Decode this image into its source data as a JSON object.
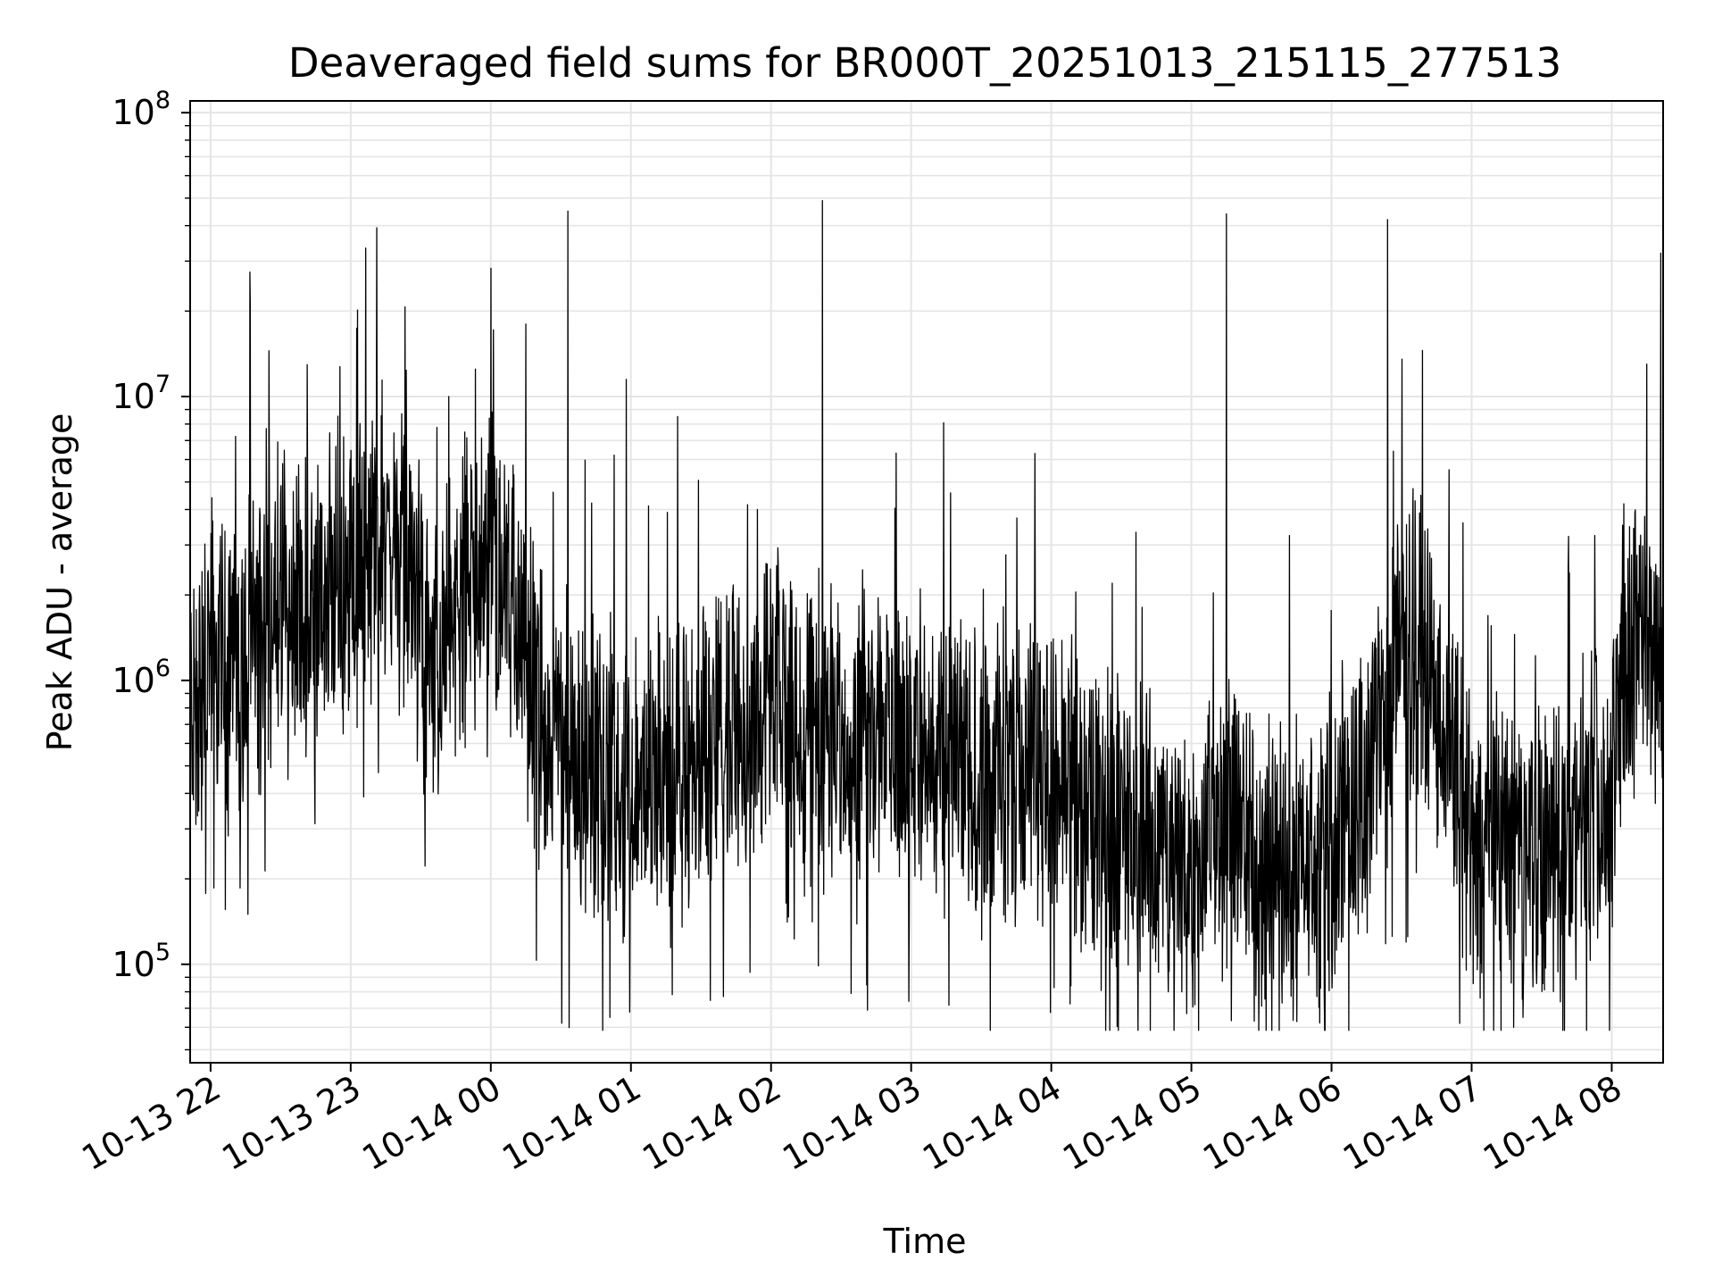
{
  "chart_data": {
    "type": "line",
    "title": "Deaveraged field sums for BR000T_20251013_215115_277513",
    "xlabel": "Time",
    "ylabel": "Peak ADU - average",
    "y_scale": "log",
    "ylim": [
      45000,
      110000000
    ],
    "xlim": [
      "2025-10-13 21:51:15",
      "2025-10-14 08:22:00"
    ],
    "x_ticks": [
      {
        "label": "10-13 22",
        "time": "2025-10-13 22:00"
      },
      {
        "label": "10-13 23",
        "time": "2025-10-13 23:00"
      },
      {
        "label": "10-14 00",
        "time": "2025-10-14 00:00"
      },
      {
        "label": "10-14 01",
        "time": "2025-10-14 01:00"
      },
      {
        "label": "10-14 02",
        "time": "2025-10-14 02:00"
      },
      {
        "label": "10-14 03",
        "time": "2025-10-14 03:00"
      },
      {
        "label": "10-14 04",
        "time": "2025-10-14 04:00"
      },
      {
        "label": "10-14 05",
        "time": "2025-10-14 05:00"
      },
      {
        "label": "10-14 06",
        "time": "2025-10-14 06:00"
      },
      {
        "label": "10-14 07",
        "time": "2025-10-14 07:00"
      },
      {
        "label": "10-14 08",
        "time": "2025-10-14 08:00"
      }
    ],
    "y_ticks": [
      {
        "base": "10",
        "exp": "5",
        "value": 100000
      },
      {
        "base": "10",
        "exp": "6",
        "value": 1000000
      },
      {
        "base": "10",
        "exp": "7",
        "value": 10000000
      },
      {
        "base": "10",
        "exp": "8",
        "value": 100000000
      }
    ],
    "grid": true,
    "line_color": "#000000",
    "baseline": [
      [
        "2025-10-13 21:51",
        900000
      ],
      [
        "2025-10-13 21:55",
        800000
      ],
      [
        "2025-10-13 22:00",
        1300000
      ],
      [
        "2025-10-13 22:10",
        900000
      ],
      [
        "2025-10-13 22:20",
        1500000
      ],
      [
        "2025-10-13 22:30",
        1800000
      ],
      [
        "2025-10-13 22:45",
        1700000
      ],
      [
        "2025-10-13 23:00",
        2200000
      ],
      [
        "2025-10-13 23:15",
        3300000
      ],
      [
        "2025-10-13 23:25",
        2500000
      ],
      [
        "2025-10-13 23:35",
        1000000
      ],
      [
        "2025-10-13 23:45",
        1800000
      ],
      [
        "2025-10-14 00:00",
        2800000
      ],
      [
        "2025-10-14 00:10",
        2000000
      ],
      [
        "2025-10-14 00:20",
        700000
      ],
      [
        "2025-10-14 00:40",
        550000
      ],
      [
        "2025-10-14 01:00",
        400000
      ],
      [
        "2025-10-14 01:20",
        450000
      ],
      [
        "2025-10-14 01:40",
        700000
      ],
      [
        "2025-10-14 02:00",
        800000
      ],
      [
        "2025-10-14 02:30",
        650000
      ],
      [
        "2025-10-14 03:00",
        600000
      ],
      [
        "2025-10-14 03:30",
        450000
      ],
      [
        "2025-10-14 04:00",
        450000
      ],
      [
        "2025-10-14 04:30",
        300000
      ],
      [
        "2025-10-14 05:00",
        220000
      ],
      [
        "2025-10-14 05:15",
        350000
      ],
      [
        "2025-10-14 05:30",
        200000
      ],
      [
        "2025-10-14 06:00",
        250000
      ],
      [
        "2025-10-14 06:20",
        600000
      ],
      [
        "2025-10-14 06:35",
        1500000
      ],
      [
        "2025-10-14 06:45",
        900000
      ],
      [
        "2025-10-14 07:00",
        250000
      ],
      [
        "2025-10-14 07:30",
        250000
      ],
      [
        "2025-10-14 08:00",
        400000
      ],
      [
        "2025-10-14 08:05",
        1000000
      ],
      [
        "2025-10-14 08:15",
        1800000
      ],
      [
        "2025-10-14 08:22",
        900000
      ]
    ],
    "spikes": [
      [
        "2025-10-13 22:17",
        21000000
      ],
      [
        "2025-10-13 22:25",
        14500000
      ],
      [
        "2025-10-13 23:42",
        10000000
      ],
      [
        "2025-10-14 00:15",
        18000000
      ],
      [
        "2025-10-14 00:33",
        45000000
      ],
      [
        "2025-10-14 00:58",
        11500000
      ],
      [
        "2025-10-14 01:20",
        8500000
      ],
      [
        "2025-10-14 02:22",
        49000000
      ],
      [
        "2025-10-14 03:53",
        6300000
      ],
      [
        "2025-10-14 05:15",
        44000000
      ],
      [
        "2025-10-14 06:24",
        42000000
      ],
      [
        "2025-10-14 08:15",
        13000000
      ],
      [
        "2025-10-14 08:21",
        32000000
      ]
    ],
    "dips": [
      [
        "2025-10-13 22:16",
        150000
      ],
      [
        "2025-10-14 00:51",
        65000
      ],
      [
        "2025-10-14 04:58",
        67000
      ],
      [
        "2025-10-14 07:18",
        60000
      ],
      [
        "2025-10-14 07:22",
        65000
      ]
    ]
  }
}
